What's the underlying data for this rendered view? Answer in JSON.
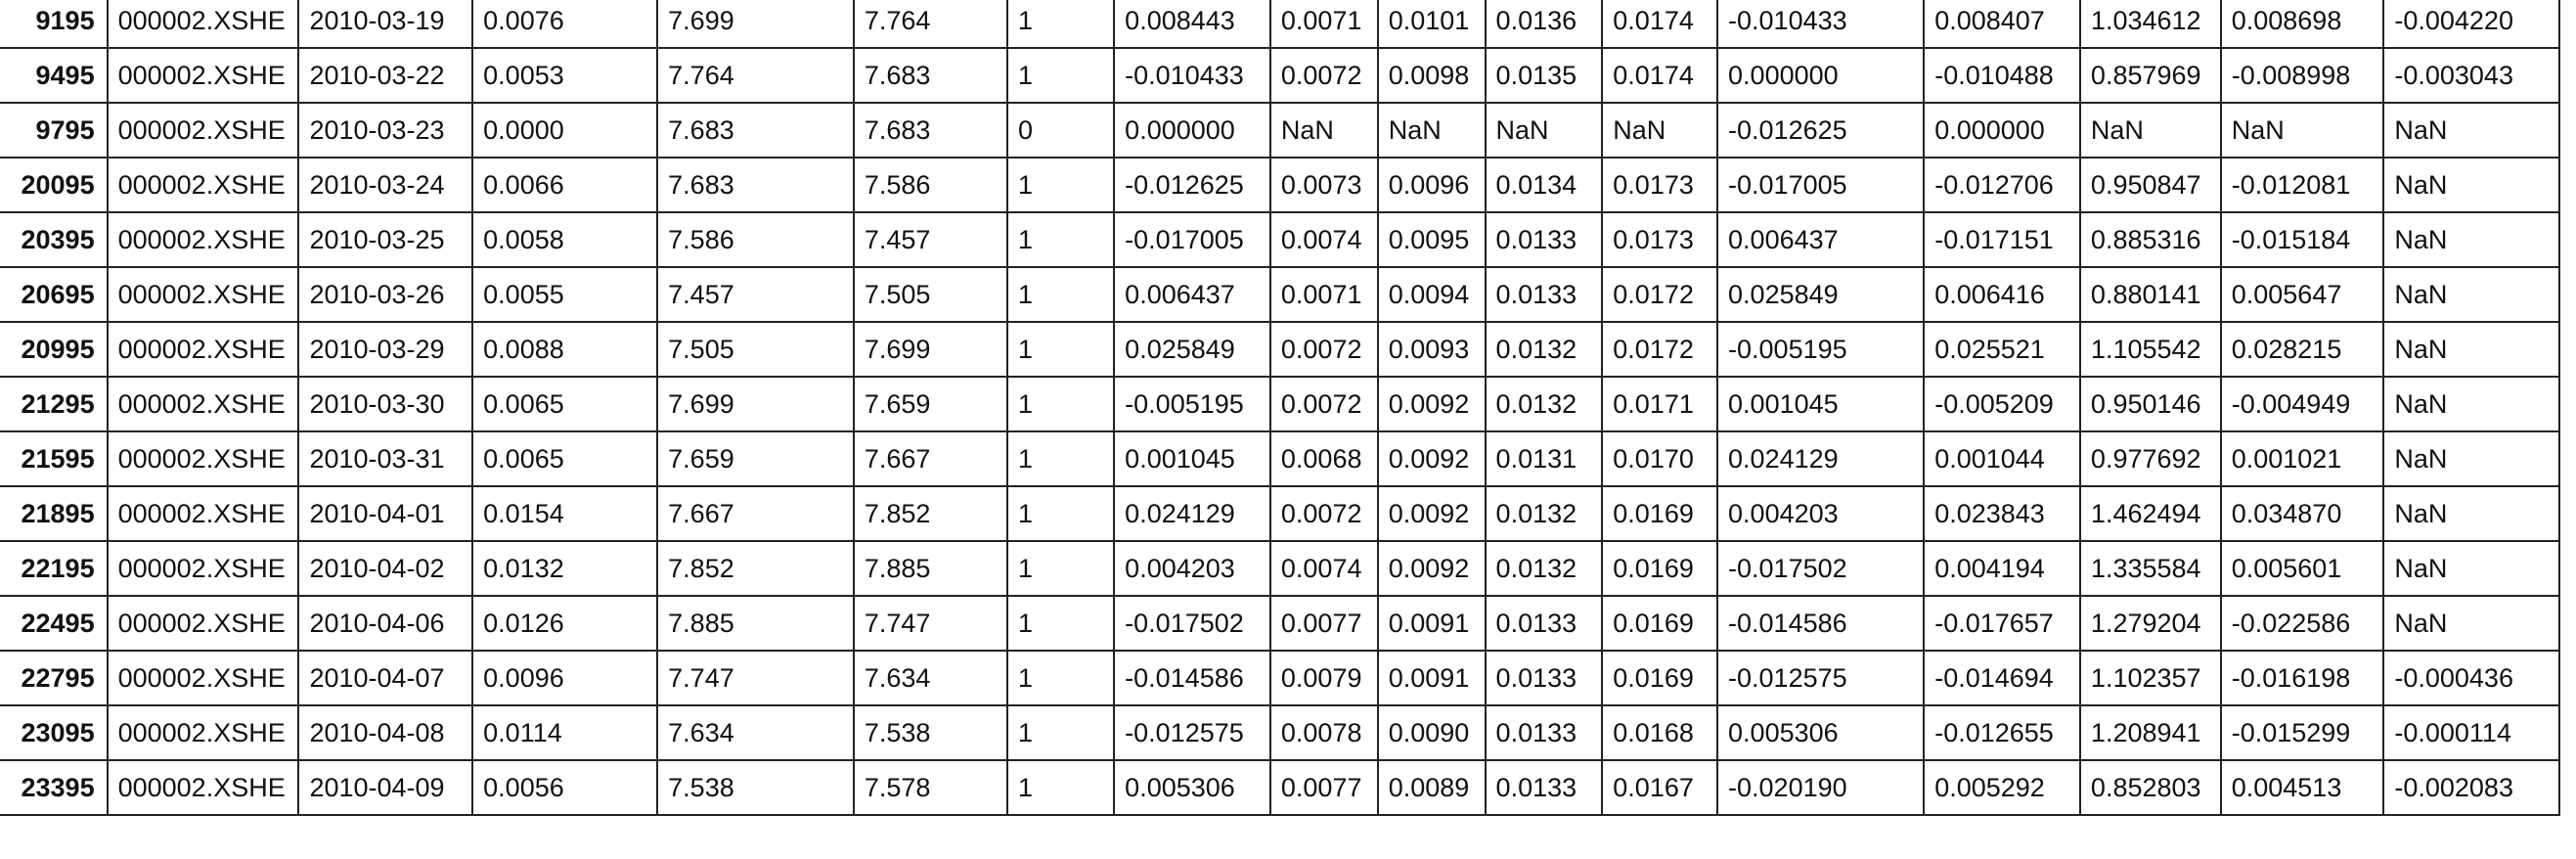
{
  "table": {
    "rows": [
      {
        "index": "9195",
        "cells": [
          "000002.XSHE",
          "2010-03-19",
          "0.0076",
          "7.699",
          "7.764",
          "1",
          "0.008443",
          "0.0071",
          "0.0101",
          "0.0136",
          "0.0174",
          "-0.010433",
          "0.008407",
          "1.034612",
          "0.008698",
          "-0.004220"
        ]
      },
      {
        "index": "9495",
        "cells": [
          "000002.XSHE",
          "2010-03-22",
          "0.0053",
          "7.764",
          "7.683",
          "1",
          "-0.010433",
          "0.0072",
          "0.0098",
          "0.0135",
          "0.0174",
          "0.000000",
          "-0.010488",
          "0.857969",
          "-0.008998",
          "-0.003043"
        ]
      },
      {
        "index": "9795",
        "cells": [
          "000002.XSHE",
          "2010-03-23",
          "0.0000",
          "7.683",
          "7.683",
          "0",
          "0.000000",
          "NaN",
          "NaN",
          "NaN",
          "NaN",
          "-0.012625",
          "0.000000",
          "NaN",
          "NaN",
          "NaN"
        ]
      },
      {
        "index": "20095",
        "cells": [
          "000002.XSHE",
          "2010-03-24",
          "0.0066",
          "7.683",
          "7.586",
          "1",
          "-0.012625",
          "0.0073",
          "0.0096",
          "0.0134",
          "0.0173",
          "-0.017005",
          "-0.012706",
          "0.950847",
          "-0.012081",
          "NaN"
        ]
      },
      {
        "index": "20395",
        "cells": [
          "000002.XSHE",
          "2010-03-25",
          "0.0058",
          "7.586",
          "7.457",
          "1",
          "-0.017005",
          "0.0074",
          "0.0095",
          "0.0133",
          "0.0173",
          "0.006437",
          "-0.017151",
          "0.885316",
          "-0.015184",
          "NaN"
        ]
      },
      {
        "index": "20695",
        "cells": [
          "000002.XSHE",
          "2010-03-26",
          "0.0055",
          "7.457",
          "7.505",
          "1",
          "0.006437",
          "0.0071",
          "0.0094",
          "0.0133",
          "0.0172",
          "0.025849",
          "0.006416",
          "0.880141",
          "0.005647",
          "NaN"
        ]
      },
      {
        "index": "20995",
        "cells": [
          "000002.XSHE",
          "2010-03-29",
          "0.0088",
          "7.505",
          "7.699",
          "1",
          "0.025849",
          "0.0072",
          "0.0093",
          "0.0132",
          "0.0172",
          "-0.005195",
          "0.025521",
          "1.105542",
          "0.028215",
          "NaN"
        ]
      },
      {
        "index": "21295",
        "cells": [
          "000002.XSHE",
          "2010-03-30",
          "0.0065",
          "7.699",
          "7.659",
          "1",
          "-0.005195",
          "0.0072",
          "0.0092",
          "0.0132",
          "0.0171",
          "0.001045",
          "-0.005209",
          "0.950146",
          "-0.004949",
          "NaN"
        ]
      },
      {
        "index": "21595",
        "cells": [
          "000002.XSHE",
          "2010-03-31",
          "0.0065",
          "7.659",
          "7.667",
          "1",
          "0.001045",
          "0.0068",
          "0.0092",
          "0.0131",
          "0.0170",
          "0.024129",
          "0.001044",
          "0.977692",
          "0.001021",
          "NaN"
        ]
      },
      {
        "index": "21895",
        "cells": [
          "000002.XSHE",
          "2010-04-01",
          "0.0154",
          "7.667",
          "7.852",
          "1",
          "0.024129",
          "0.0072",
          "0.0092",
          "0.0132",
          "0.0169",
          "0.004203",
          "0.023843",
          "1.462494",
          "0.034870",
          "NaN"
        ]
      },
      {
        "index": "22195",
        "cells": [
          "000002.XSHE",
          "2010-04-02",
          "0.0132",
          "7.852",
          "7.885",
          "1",
          "0.004203",
          "0.0074",
          "0.0092",
          "0.0132",
          "0.0169",
          "-0.017502",
          "0.004194",
          "1.335584",
          "0.005601",
          "NaN"
        ]
      },
      {
        "index": "22495",
        "cells": [
          "000002.XSHE",
          "2010-04-06",
          "0.0126",
          "7.885",
          "7.747",
          "1",
          "-0.017502",
          "0.0077",
          "0.0091",
          "0.0133",
          "0.0169",
          "-0.014586",
          "-0.017657",
          "1.279204",
          "-0.022586",
          "NaN"
        ]
      },
      {
        "index": "22795",
        "cells": [
          "000002.XSHE",
          "2010-04-07",
          "0.0096",
          "7.747",
          "7.634",
          "1",
          "-0.014586",
          "0.0079",
          "0.0091",
          "0.0133",
          "0.0169",
          "-0.012575",
          "-0.014694",
          "1.102357",
          "-0.016198",
          "-0.000436"
        ]
      },
      {
        "index": "23095",
        "cells": [
          "000002.XSHE",
          "2010-04-08",
          "0.0114",
          "7.634",
          "7.538",
          "1",
          "-0.012575",
          "0.0078",
          "0.0090",
          "0.0133",
          "0.0168",
          "0.005306",
          "-0.012655",
          "1.208941",
          "-0.015299",
          "-0.000114"
        ]
      },
      {
        "index": "23395",
        "cells": [
          "000002.XSHE",
          "2010-04-09",
          "0.0056",
          "7.538",
          "7.578",
          "1",
          "0.005306",
          "0.0077",
          "0.0089",
          "0.0133",
          "0.0167",
          "-0.020190",
          "0.005292",
          "0.852803",
          "0.004513",
          "-0.002083"
        ]
      }
    ]
  }
}
